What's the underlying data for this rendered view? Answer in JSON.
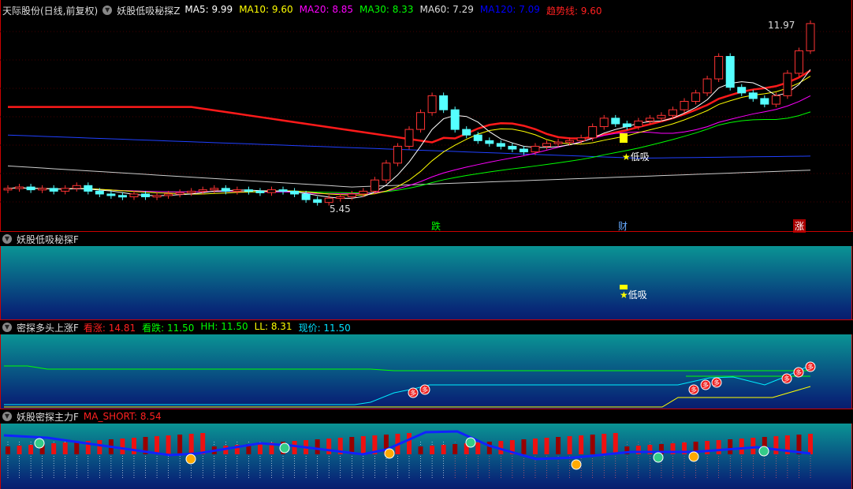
{
  "main": {
    "title": "天际股份(日线,前复权)",
    "indicator": "妖股低吸秘探Z",
    "ma": [
      {
        "label": "MA5: 9.99",
        "color": "#ffffff"
      },
      {
        "label": "MA10: 9.60",
        "color": "#ffff00"
      },
      {
        "label": "MA20: 8.85",
        "color": "#ff00ff"
      },
      {
        "label": "MA30: 8.33",
        "color": "#00ff00"
      },
      {
        "label": "MA60: 7.29",
        "color": "#dddddd"
      },
      {
        "label": "MA120: 7.09",
        "color": "#0000ff"
      },
      {
        "label": "趋势线: 9.60",
        "color": "#ff2020"
      }
    ],
    "high_label": "11.97",
    "low_label": "5.45",
    "signal_label": "低吸",
    "markers": [
      {
        "text": "跌",
        "color": "#00ff00"
      },
      {
        "text": "财",
        "color": "#66aaff"
      },
      {
        "text": "涨",
        "color": "#ff3030"
      }
    ]
  },
  "panel2": {
    "title": "妖股低吸秘探F",
    "signal_label": "低吸"
  },
  "panel3": {
    "title": "密探多头上涨F",
    "values": [
      {
        "label": "看涨: 14.81",
        "color": "#ff2020"
      },
      {
        "label": "看跌: 11.50",
        "color": "#00ff00"
      },
      {
        "label": "HH: 11.50",
        "color": "#00ff00"
      },
      {
        "label": "LL: 8.31",
        "color": "#ffff00"
      },
      {
        "label": "现价: 11.50",
        "color": "#00e0ff"
      }
    ],
    "badge": "多"
  },
  "panel4": {
    "title": "妖股密探主力F",
    "values": [
      {
        "label": "MA_SHORT: 8.54",
        "color": "#ff2020"
      }
    ]
  }
}
